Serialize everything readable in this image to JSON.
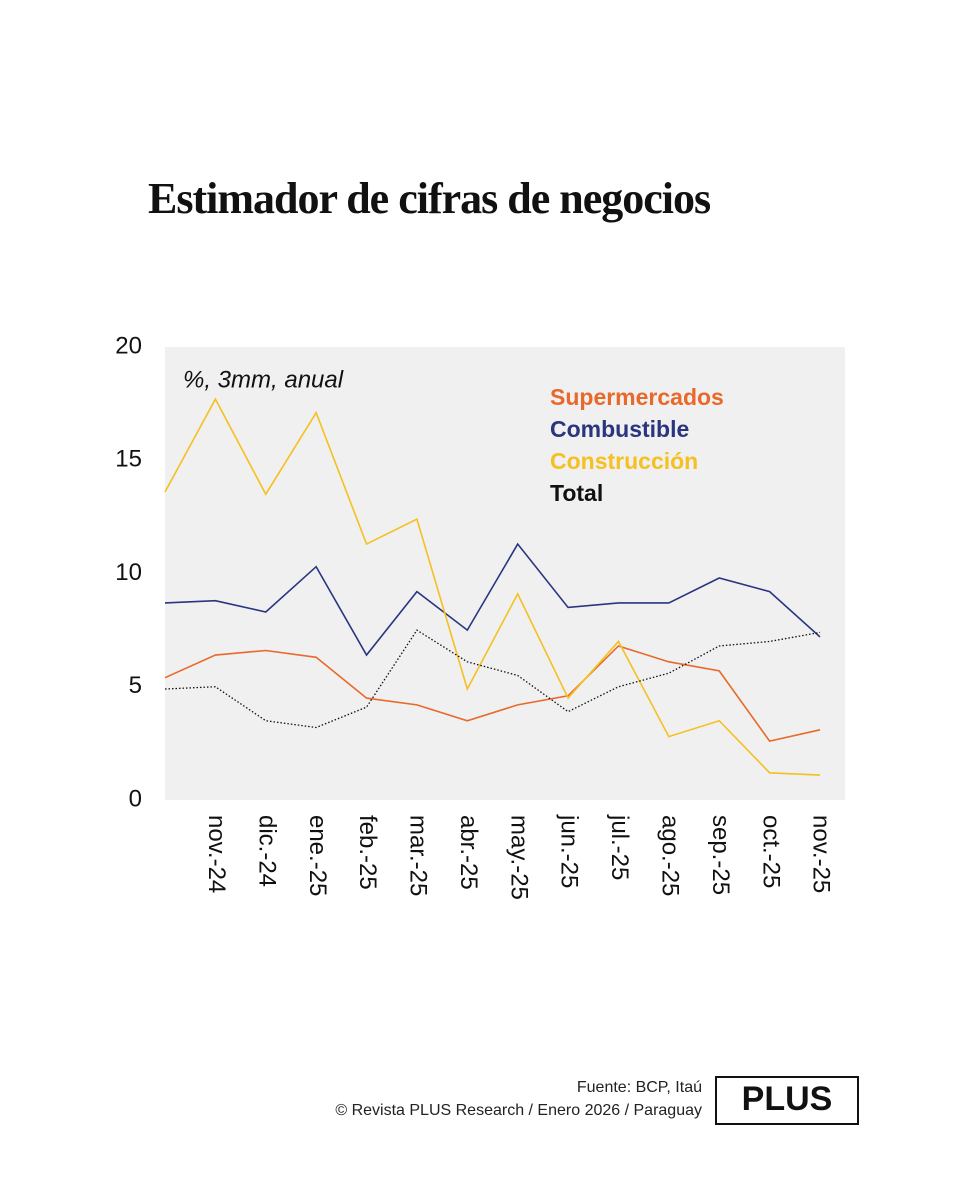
{
  "chart_data": {
    "type": "line",
    "title": "Estimador de cifras de negocios",
    "annotation": "%, 3mm, anual",
    "categories": [
      null,
      "nov.-24",
      "dic.-24",
      "ene.-25",
      "feb.-25",
      "mar.-25",
      "abr.-25",
      "may.-25",
      "jun.-25",
      "jul.-25",
      "ago.-25",
      "sep.-25",
      "oct.-25",
      "nov.-25"
    ],
    "series": [
      {
        "name": "Supermercados",
        "color": "#e8692a",
        "line_style": "solid",
        "values": [
          5.4,
          6.4,
          6.6,
          6.3,
          4.5,
          4.2,
          3.5,
          4.2,
          4.6,
          6.8,
          6.1,
          5.7,
          2.6,
          3.1
        ]
      },
      {
        "name": "Combustible",
        "color": "#2a3580",
        "line_style": "solid",
        "values": [
          8.7,
          8.8,
          8.3,
          10.3,
          6.4,
          9.2,
          7.5,
          11.3,
          8.5,
          8.7,
          8.7,
          9.8,
          9.2,
          7.2
        ]
      },
      {
        "name": "Construcción",
        "color": "#f5c020",
        "line_style": "solid",
        "values": [
          13.6,
          17.7,
          13.5,
          17.1,
          11.3,
          12.4,
          4.9,
          9.1,
          4.5,
          7.0,
          2.8,
          3.5,
          1.2,
          1.1
        ]
      },
      {
        "name": "Total",
        "color": "#111111",
        "line_style": "dotted",
        "values": [
          4.9,
          5.0,
          3.5,
          3.2,
          4.1,
          7.5,
          6.1,
          5.5,
          3.9,
          5.0,
          5.6,
          6.8,
          7.0,
          7.4
        ]
      }
    ],
    "ylim": [
      0,
      20
    ],
    "yticks": [
      0,
      5,
      10,
      15,
      20
    ],
    "grid": false
  },
  "footer": {
    "source": "Fuente: BCP, Itaú",
    "copyright": "© Revista PLUS Research / Enero 2026 / Paraguay",
    "logo": "PLUS"
  }
}
